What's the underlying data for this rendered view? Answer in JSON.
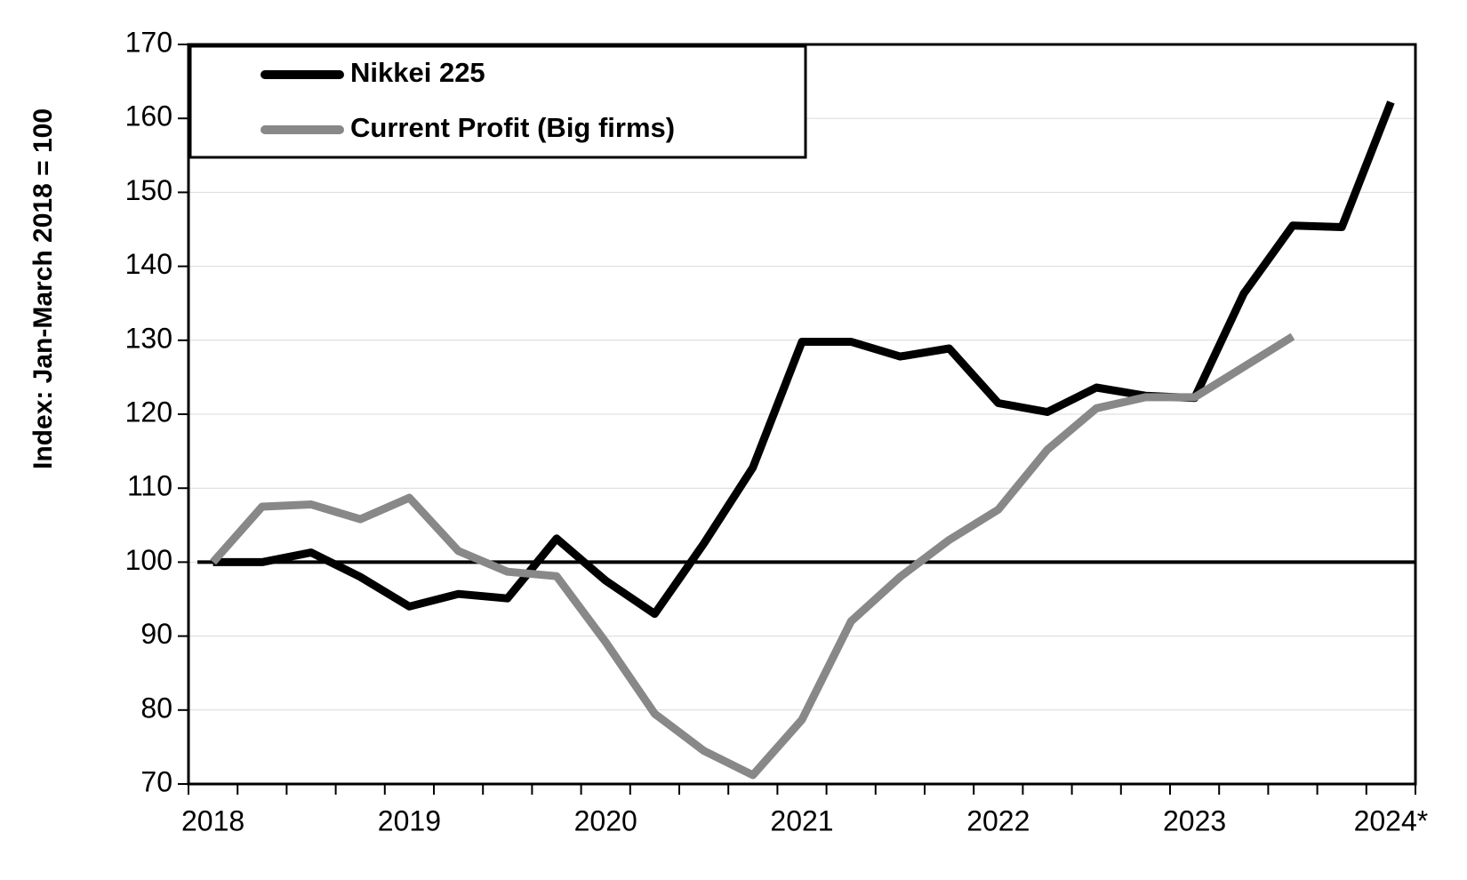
{
  "chart_data": {
    "type": "line",
    "y_axis_label": "Index: Jan-March 2018 = 100",
    "categories": [
      "2018",
      null,
      null,
      null,
      "2019",
      null,
      null,
      null,
      "2020",
      null,
      null,
      null,
      "2021",
      null,
      null,
      null,
      "2022",
      null,
      null,
      null,
      "2023",
      null,
      null,
      null,
      "2024*"
    ],
    "series": [
      {
        "name": "Nikkei 225",
        "color": "#000000",
        "values": [
          100,
          100,
          101.3,
          98,
          94,
          95.7,
          95.1,
          103.2,
          97.5,
          93,
          102.5,
          112.8,
          129.8,
          129.8,
          127.8,
          128.9,
          121.5,
          120.3,
          123.6,
          122.5,
          122.2,
          136.3,
          145.5,
          145.3,
          162.2
        ]
      },
      {
        "name": "Current Profit (Big firms)",
        "color": "#888888",
        "values": [
          100,
          107.5,
          107.8,
          105.8,
          108.7,
          101.5,
          98.7,
          98.1,
          89.2,
          79.5,
          74.5,
          71.2,
          78.7,
          92,
          98,
          103,
          107.1,
          115.2,
          120.8,
          122.3,
          122.3,
          126.4,
          130.5,
          null,
          null
        ]
      }
    ],
    "reference_line": 100,
    "ylim": [
      70,
      170
    ],
    "yticks": [
      70,
      80,
      90,
      100,
      110,
      120,
      130,
      140,
      150,
      160,
      170
    ],
    "grid": true,
    "legend": "upper left"
  }
}
